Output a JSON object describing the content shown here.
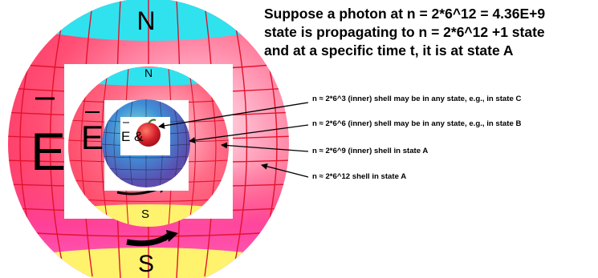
{
  "headline": {
    "line1": "Suppose a photon at n = 2*6^12 = 4.36E+9",
    "line2": "state is propagating to n = 2*6^12 +1 state",
    "line3": "and at a specific time t, it is at state A"
  },
  "annotations": [
    "n ≈ 2*6^3 (inner) shell may be in any state, e.g., in state C",
    "n ≈ 2*6^6 (inner) shell may be in any state, e.g., in state B",
    "n ≈ 2*6^9 (inner) shell in state A",
    "n ≈ 2*6^12 shell in state A"
  ],
  "sphere_labels": {
    "outer_north": "N",
    "outer_south": "S",
    "outer_field": "E",
    "middle_north": "N",
    "middle_south": "S",
    "middle_field": "E",
    "inner_field": "E &"
  },
  "colors": {
    "cap_north": "#29e0ee",
    "cap_south": "#fff56a",
    "shell_red": "#ff4d6d",
    "shell_pink": "#ff5ea8",
    "grid_red": "#e8102a",
    "globe_blue": "#3a6fd0",
    "globe_purple": "#6a5aa8",
    "globe_teal": "#3fb8c8",
    "apple": "#d2202a"
  }
}
